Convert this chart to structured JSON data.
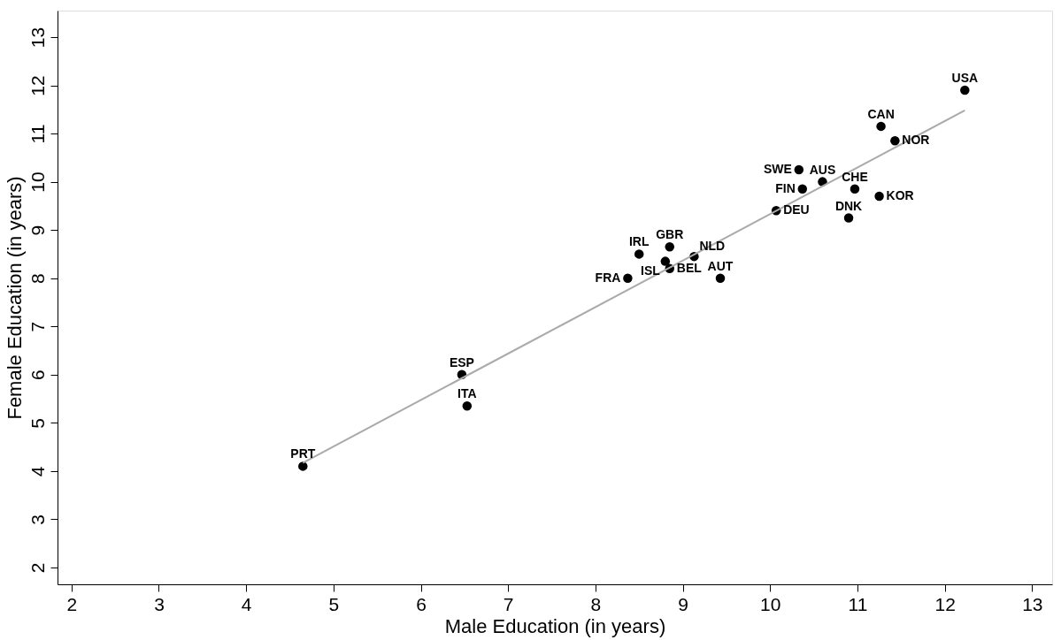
{
  "chart_data": {
    "type": "scatter",
    "xlabel": "Male Education (in years)",
    "ylabel": "Female Education (in years)",
    "xlim": [
      1.84,
      13.23
    ],
    "ylim": [
      1.65,
      13.55
    ],
    "xticks": [
      2,
      3,
      4,
      5,
      6,
      7,
      8,
      9,
      10,
      11,
      12,
      13
    ],
    "yticks": [
      2,
      3,
      4,
      5,
      6,
      7,
      8,
      9,
      10,
      11,
      12,
      13
    ],
    "grid": false,
    "series": [
      {
        "marker": "circle",
        "color": "#000000",
        "x": [
          4.65,
          6.47,
          6.53,
          8.37,
          8.5,
          8.85,
          8.8,
          8.85,
          9.13,
          9.43,
          10.07,
          10.37,
          10.33,
          10.6,
          10.97,
          11.25,
          10.9,
          11.27,
          11.43,
          12.23
        ],
        "values": [
          4.1,
          6.0,
          5.35,
          8.0,
          8.5,
          8.65,
          8.35,
          8.2,
          8.45,
          8.0,
          9.4,
          9.85,
          10.25,
          10.0,
          9.85,
          9.7,
          9.25,
          11.15,
          10.85,
          11.9
        ]
      },
      {
        "type": "line",
        "color": "#aaaaaa",
        "x": [
          4.65,
          12.23
        ],
        "values": [
          4.17,
          11.48
        ]
      }
    ],
    "annotations": [
      {
        "text": "PRT",
        "x": 4.65,
        "y": 4.1
      },
      {
        "text": "ESP",
        "x": 6.47,
        "y": 6.0
      },
      {
        "text": "ITA",
        "x": 6.53,
        "y": 5.35
      },
      {
        "text": "FRA",
        "x": 8.37,
        "y": 8.0
      },
      {
        "text": "IRL",
        "x": 8.5,
        "y": 8.5
      },
      {
        "text": "GBR",
        "x": 8.85,
        "y": 8.65
      },
      {
        "text": "ISL",
        "x": 8.8,
        "y": 8.35
      },
      {
        "text": "BEL",
        "x": 8.85,
        "y": 8.2
      },
      {
        "text": "NLD",
        "x": 9.13,
        "y": 8.45
      },
      {
        "text": "AUT",
        "x": 9.43,
        "y": 8.0
      },
      {
        "text": "DEU",
        "x": 10.07,
        "y": 9.4
      },
      {
        "text": "FIN",
        "x": 10.37,
        "y": 9.85
      },
      {
        "text": "SWE",
        "x": 10.33,
        "y": 10.25
      },
      {
        "text": "AUS",
        "x": 10.6,
        "y": 10.0
      },
      {
        "text": "CHE",
        "x": 10.97,
        "y": 9.85
      },
      {
        "text": "KOR",
        "x": 11.25,
        "y": 9.7
      },
      {
        "text": "DNK",
        "x": 10.9,
        "y": 9.25
      },
      {
        "text": "CAN",
        "x": 11.27,
        "y": 11.15
      },
      {
        "text": "NOR",
        "x": 11.43,
        "y": 10.85
      },
      {
        "text": "USA",
        "x": 12.23,
        "y": 11.9
      }
    ]
  }
}
